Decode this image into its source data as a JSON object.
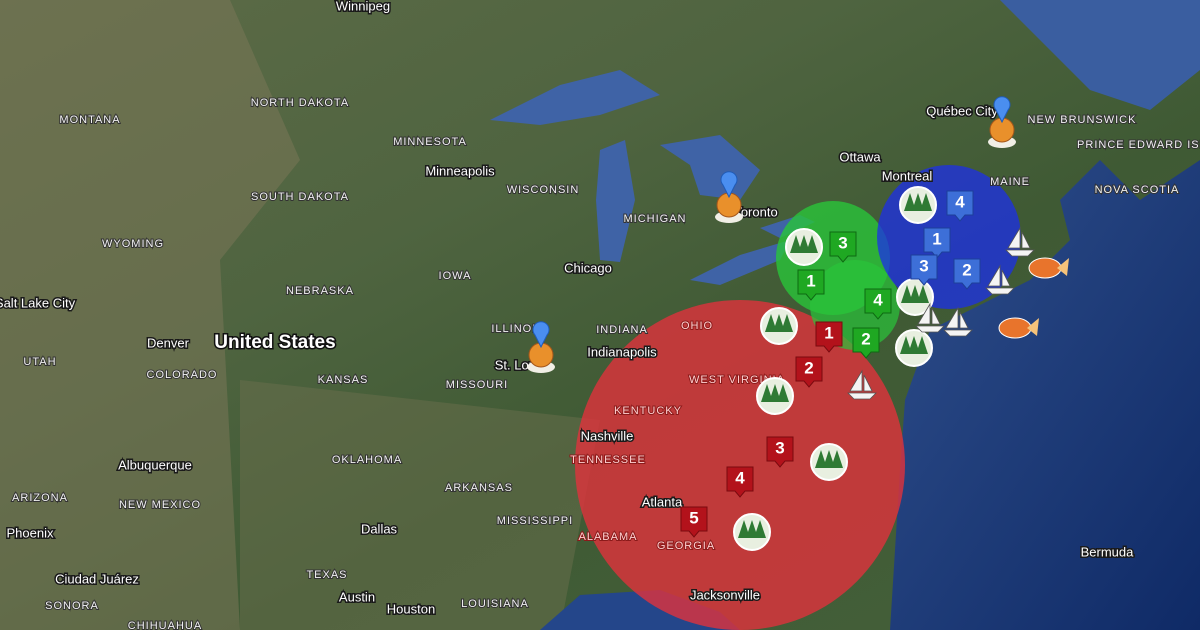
{
  "labels": [
    "Winnipeg",
    "NORTH DAKOTA",
    "MONTANA",
    "MINNESOTA",
    "Minneapolis",
    "WISCONSIN",
    "SOUTH DAKOTA",
    "WYOMING",
    "MICHIGAN",
    "Ottawa",
    "Montreal",
    "Québec City",
    "NEW BRUNSWICK",
    "PRINCE EDWARD ISLAND",
    "MAINE",
    "NOVA SCOTIA",
    "Toronto",
    "Chicago",
    "IOWA",
    "NEBRASKA",
    "Salt Lake City",
    "ILLINOIS",
    "INDIANA",
    "OHIO",
    "Denver",
    "United States",
    "Indianapolis",
    "UTAH",
    "COLORADO",
    "KANSAS",
    "MISSOURI",
    "St. Louis",
    "WEST VIRGINIA",
    "KENTUCKY",
    "Nashville",
    "TENNESSEE",
    "OKLAHOMA",
    "Albuquerque",
    "ARKANSAS",
    "ARIZONA",
    "NEW MEXICO",
    "Atlanta",
    "ALABAMA",
    "MISSISSIPPI",
    "GEORGIA",
    "Dallas",
    "Phoenix",
    "Bermuda",
    "Ciudad Juárez",
    "TEXAS",
    "Austin",
    "Houston",
    "LOUISIANA",
    "Jacksonville",
    "SONORA",
    "CHIHUAHUA"
  ],
  "markers": {
    "red": [
      1,
      2,
      3,
      4,
      5
    ],
    "green": [
      3,
      1,
      4,
      2
    ],
    "blue": [
      4,
      1,
      3,
      2
    ]
  }
}
